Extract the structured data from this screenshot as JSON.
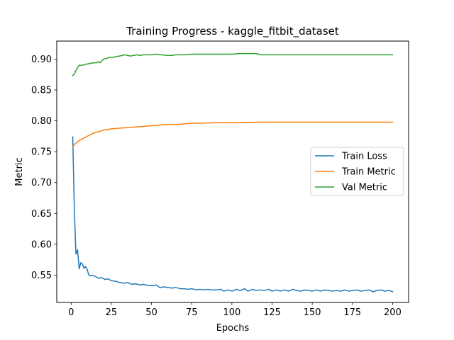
{
  "chart_data": {
    "type": "line",
    "title": "Training Progress - kaggle_fitbit_dataset",
    "xlabel": "Epochs",
    "ylabel": "Metric",
    "xlim": [
      -8.95,
      209.95
    ],
    "ylim": [
      0.5057,
      0.9292
    ],
    "xticks": [
      0,
      25,
      50,
      75,
      100,
      125,
      150,
      175,
      200
    ],
    "yticks": [
      0.55,
      0.6,
      0.65,
      0.7,
      0.75,
      0.8,
      0.85,
      0.9
    ],
    "ytick_labels": [
      "0.55",
      "0.60",
      "0.65",
      "0.70",
      "0.75",
      "0.80",
      "0.85",
      "0.90"
    ],
    "grid": false,
    "legend_position": "center-right",
    "series": [
      {
        "name": "Train Loss",
        "color": "#1f77b4",
        "points": [
          [
            1,
            0.774
          ],
          [
            2,
            0.655
          ],
          [
            3,
            0.584
          ],
          [
            4,
            0.591
          ],
          [
            5,
            0.56
          ],
          [
            6,
            0.57
          ],
          [
            7,
            0.568
          ],
          [
            8,
            0.561
          ],
          [
            9,
            0.564
          ],
          [
            10,
            0.559
          ],
          [
            11,
            0.55
          ],
          [
            12,
            0.549
          ],
          [
            13,
            0.55
          ],
          [
            15,
            0.548
          ],
          [
            17,
            0.545
          ],
          [
            19,
            0.546
          ],
          [
            21,
            0.543
          ],
          [
            23,
            0.544
          ],
          [
            25,
            0.541
          ],
          [
            28,
            0.54
          ],
          [
            30,
            0.538
          ],
          [
            33,
            0.537
          ],
          [
            35,
            0.538
          ],
          [
            38,
            0.535
          ],
          [
            40,
            0.536
          ],
          [
            43,
            0.534
          ],
          [
            45,
            0.535
          ],
          [
            48,
            0.533
          ],
          [
            50,
            0.533
          ],
          [
            53,
            0.534
          ],
          [
            55,
            0.53
          ],
          [
            58,
            0.531
          ],
          [
            60,
            0.53
          ],
          [
            63,
            0.529
          ],
          [
            65,
            0.53
          ],
          [
            68,
            0.528
          ],
          [
            70,
            0.528
          ],
          [
            73,
            0.527
          ],
          [
            75,
            0.528
          ],
          [
            78,
            0.526
          ],
          [
            80,
            0.527
          ],
          [
            83,
            0.526
          ],
          [
            85,
            0.527
          ],
          [
            88,
            0.526
          ],
          [
            90,
            0.526
          ],
          [
            93,
            0.527
          ],
          [
            95,
            0.524
          ],
          [
            98,
            0.526
          ],
          [
            100,
            0.524
          ],
          [
            103,
            0.527
          ],
          [
            105,
            0.525
          ],
          [
            108,
            0.528
          ],
          [
            110,
            0.524
          ],
          [
            113,
            0.527
          ],
          [
            115,
            0.525
          ],
          [
            118,
            0.526
          ],
          [
            120,
            0.525
          ],
          [
            123,
            0.527
          ],
          [
            125,
            0.524
          ],
          [
            128,
            0.526
          ],
          [
            130,
            0.524
          ],
          [
            133,
            0.526
          ],
          [
            135,
            0.524
          ],
          [
            138,
            0.527
          ],
          [
            140,
            0.525
          ],
          [
            143,
            0.524
          ],
          [
            145,
            0.526
          ],
          [
            148,
            0.525
          ],
          [
            150,
            0.524
          ],
          [
            153,
            0.526
          ],
          [
            155,
            0.524
          ],
          [
            158,
            0.526
          ],
          [
            160,
            0.525
          ],
          [
            163,
            0.524
          ],
          [
            165,
            0.525
          ],
          [
            168,
            0.524
          ],
          [
            170,
            0.526
          ],
          [
            173,
            0.524
          ],
          [
            175,
            0.525
          ],
          [
            178,
            0.526
          ],
          [
            180,
            0.524
          ],
          [
            183,
            0.525
          ],
          [
            185,
            0.526
          ],
          [
            188,
            0.523
          ],
          [
            190,
            0.525
          ],
          [
            193,
            0.526
          ],
          [
            195,
            0.524
          ],
          [
            198,
            0.525
          ],
          [
            200,
            0.523
          ]
        ]
      },
      {
        "name": "Train Metric",
        "color": "#ff7f0e",
        "points": [
          [
            1,
            0.758
          ],
          [
            3,
            0.764
          ],
          [
            5,
            0.768
          ],
          [
            8,
            0.772
          ],
          [
            10,
            0.775
          ],
          [
            13,
            0.779
          ],
          [
            15,
            0.781
          ],
          [
            18,
            0.783
          ],
          [
            20,
            0.785
          ],
          [
            23,
            0.786
          ],
          [
            25,
            0.787
          ],
          [
            30,
            0.788
          ],
          [
            35,
            0.789
          ],
          [
            40,
            0.79
          ],
          [
            45,
            0.791
          ],
          [
            50,
            0.792
          ],
          [
            55,
            0.793
          ],
          [
            60,
            0.794
          ],
          [
            65,
            0.794
          ],
          [
            70,
            0.795
          ],
          [
            75,
            0.796
          ],
          [
            80,
            0.796
          ],
          [
            90,
            0.797
          ],
          [
            100,
            0.797
          ],
          [
            110,
            0.7975
          ],
          [
            120,
            0.798
          ],
          [
            140,
            0.798
          ],
          [
            160,
            0.798
          ],
          [
            180,
            0.798
          ],
          [
            200,
            0.798
          ]
        ]
      },
      {
        "name": "Val Metric",
        "color": "#2ca02c",
        "points": [
          [
            1,
            0.873
          ],
          [
            2,
            0.876
          ],
          [
            3,
            0.882
          ],
          [
            4,
            0.886
          ],
          [
            5,
            0.89
          ],
          [
            7,
            0.89
          ],
          [
            8,
            0.891
          ],
          [
            10,
            0.892
          ],
          [
            12,
            0.893
          ],
          [
            14,
            0.894
          ],
          [
            16,
            0.894
          ],
          [
            17,
            0.896
          ],
          [
            18,
            0.894
          ],
          [
            19,
            0.897
          ],
          [
            20,
            0.9
          ],
          [
            22,
            0.901
          ],
          [
            24,
            0.903
          ],
          [
            26,
            0.903
          ],
          [
            28,
            0.904
          ],
          [
            30,
            0.905
          ],
          [
            32,
            0.906
          ],
          [
            33,
            0.907
          ],
          [
            35,
            0.906
          ],
          [
            37,
            0.905
          ],
          [
            39,
            0.906
          ],
          [
            41,
            0.907
          ],
          [
            43,
            0.906
          ],
          [
            45,
            0.907
          ],
          [
            48,
            0.907
          ],
          [
            50,
            0.907
          ],
          [
            53,
            0.908
          ],
          [
            56,
            0.907
          ],
          [
            60,
            0.906
          ],
          [
            63,
            0.906
          ],
          [
            65,
            0.907
          ],
          [
            70,
            0.907
          ],
          [
            75,
            0.908
          ],
          [
            80,
            0.908
          ],
          [
            85,
            0.908
          ],
          [
            90,
            0.908
          ],
          [
            100,
            0.908
          ],
          [
            105,
            0.909
          ],
          [
            110,
            0.909
          ],
          [
            115,
            0.909
          ],
          [
            118,
            0.907
          ],
          [
            120,
            0.907
          ],
          [
            140,
            0.907
          ],
          [
            160,
            0.907
          ],
          [
            180,
            0.907
          ],
          [
            200,
            0.907
          ]
        ]
      }
    ]
  }
}
